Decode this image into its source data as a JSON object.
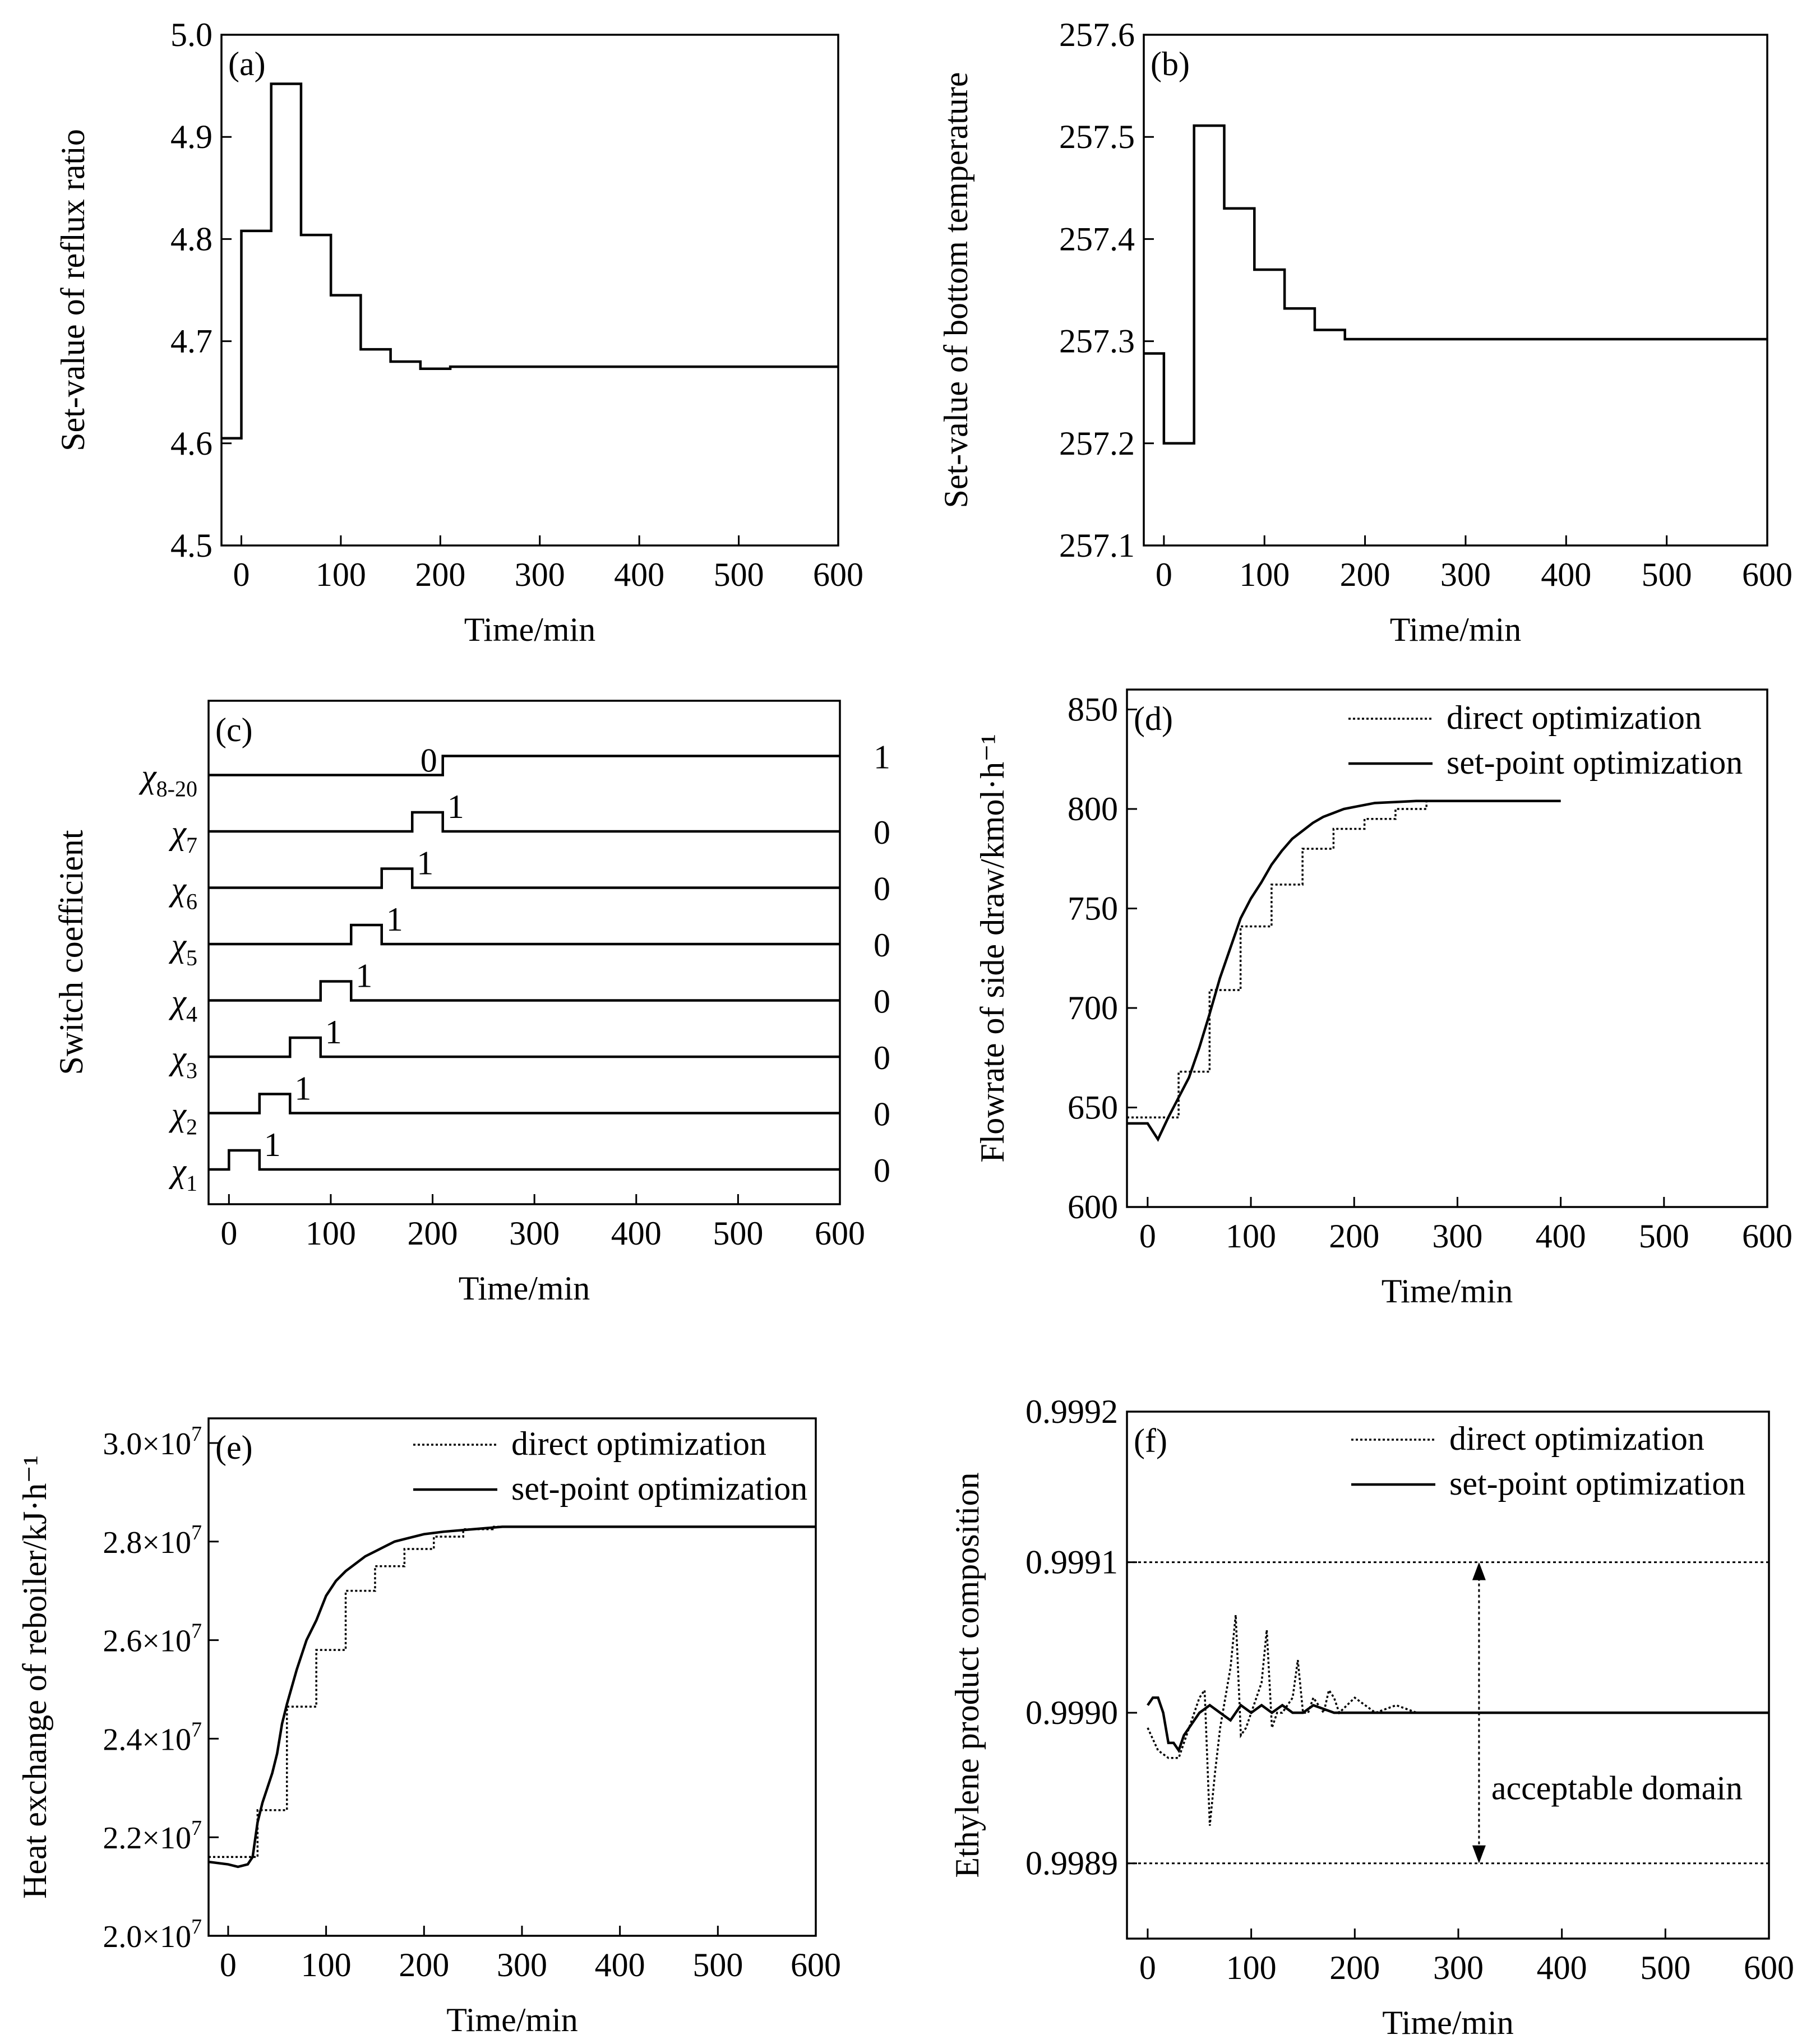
{
  "colors": {
    "ink": "#000000",
    "background": "#ffffff"
  },
  "chart_data": [
    {
      "id": "a",
      "type": "line",
      "panel_label": "(a)",
      "xlabel": "Time/min",
      "ylabel": "Set-value of reflux ratio",
      "xlim": [
        -20,
        600
      ],
      "ylim": [
        4.5,
        5.0
      ],
      "xticks": [
        0,
        100,
        200,
        300,
        400,
        500,
        600
      ],
      "xtick_labels": [
        "0",
        "100",
        "200",
        "300",
        "400",
        "500",
        "600"
      ],
      "yticks": [
        4.5,
        4.6,
        4.7,
        4.8,
        4.9,
        5.0
      ],
      "ytick_labels": [
        "4.5",
        "4.6",
        "4.7",
        "4.8",
        "4.9",
        "5.0"
      ],
      "series": [
        {
          "name": "set-value",
          "style": "step",
          "x": [
            -20,
            0,
            30,
            60,
            90,
            120,
            150,
            180,
            210,
            600
          ],
          "y": [
            4.605,
            4.808,
            4.952,
            4.804,
            4.745,
            4.692,
            4.68,
            4.673,
            4.675,
            4.675
          ]
        }
      ]
    },
    {
      "id": "b",
      "type": "line",
      "panel_label": "(b)",
      "xlabel": "Time/min",
      "ylabel": "Set-value of bottom temperature",
      "xlim": [
        -20,
        600
      ],
      "ylim": [
        257.1,
        257.6
      ],
      "xticks": [
        0,
        100,
        200,
        300,
        400,
        500,
        600
      ],
      "xtick_labels": [
        "0",
        "100",
        "200",
        "300",
        "400",
        "500",
        "600"
      ],
      "yticks": [
        257.1,
        257.2,
        257.3,
        257.4,
        257.5,
        257.6
      ],
      "ytick_labels": [
        "257.1",
        "257.2",
        "257.3",
        "257.4",
        "257.5",
        "257.6"
      ],
      "series": [
        {
          "name": "set-value",
          "style": "step",
          "x": [
            -20,
            0,
            30,
            60,
            90,
            120,
            150,
            180,
            600
          ],
          "y": [
            257.288,
            257.2,
            257.511,
            257.43,
            257.37,
            257.332,
            257.311,
            257.302,
            257.302
          ]
        }
      ]
    },
    {
      "id": "c",
      "type": "line",
      "panel_label": "(c)",
      "xlabel": "Time/min",
      "ylabel": "Switch coefficient",
      "xlim": [
        -20,
        600
      ],
      "xticks": [
        0,
        100,
        200,
        300,
        400,
        500,
        600
      ],
      "xtick_labels": [
        "0",
        "100",
        "200",
        "300",
        "400",
        "500",
        "600"
      ],
      "rows": [
        {
          "label_base": "χ",
          "label_sub": "1",
          "pulse": [
            0,
            30
          ],
          "final_value": "0",
          "pulse_value": "1"
        },
        {
          "label_base": "χ",
          "label_sub": "2",
          "pulse": [
            30,
            60
          ],
          "final_value": "0",
          "pulse_value": "1"
        },
        {
          "label_base": "χ",
          "label_sub": "3",
          "pulse": [
            60,
            90
          ],
          "final_value": "0",
          "pulse_value": "1"
        },
        {
          "label_base": "χ",
          "label_sub": "4",
          "pulse": [
            90,
            120
          ],
          "final_value": "0",
          "pulse_value": "1"
        },
        {
          "label_base": "χ",
          "label_sub": "5",
          "pulse": [
            120,
            150
          ],
          "final_value": "0",
          "pulse_value": "1"
        },
        {
          "label_base": "χ",
          "label_sub": "6",
          "pulse": [
            150,
            180
          ],
          "final_value": "0",
          "pulse_value": "1"
        },
        {
          "label_base": "χ",
          "label_sub": "7",
          "pulse": [
            180,
            210
          ],
          "final_value": "0",
          "pulse_value": "1"
        },
        {
          "label_base": "χ",
          "label_sub": "8-20",
          "step_at": 210,
          "final_value": "1",
          "pre_value": "0"
        }
      ]
    },
    {
      "id": "d",
      "type": "line",
      "panel_label": "(d)",
      "xlabel": "Time/min",
      "ylabel": "Flowrate of side draw/kmol·h⁻¹",
      "xlim": [
        -20,
        600
      ],
      "ylim": [
        600,
        860
      ],
      "xticks": [
        0,
        100,
        200,
        300,
        400,
        500,
        600
      ],
      "xtick_labels": [
        "0",
        "100",
        "200",
        "300",
        "400",
        "500",
        "600"
      ],
      "yticks": [
        600,
        650,
        700,
        750,
        800,
        850
      ],
      "ytick_labels": [
        "600",
        "650",
        "700",
        "750",
        "800",
        "850"
      ],
      "legend": [
        "direct optimization",
        "set-point optimization"
      ],
      "series": [
        {
          "name": "direct optimization",
          "style": "dotted-step",
          "x": [
            -20,
            0,
            30,
            60,
            90,
            120,
            150,
            180,
            210,
            240,
            270,
            400
          ],
          "y": [
            645,
            645,
            668,
            709,
            741,
            762,
            780,
            790,
            795,
            800,
            804,
            804
          ]
        },
        {
          "name": "set-point optimization",
          "style": "solid",
          "x": [
            -20,
            0,
            10,
            20,
            30,
            40,
            50,
            60,
            70,
            80,
            90,
            100,
            110,
            120,
            130,
            140,
            150,
            160,
            170,
            180,
            190,
            200,
            220,
            240,
            260,
            280,
            300,
            400
          ],
          "y": [
            642,
            642,
            634,
            645,
            655,
            665,
            680,
            697,
            715,
            730,
            745,
            755,
            763,
            772,
            779,
            785,
            789,
            793,
            796,
            798,
            800,
            801,
            803,
            803.5,
            804,
            804,
            804,
            804
          ]
        }
      ]
    },
    {
      "id": "e",
      "type": "line",
      "panel_label": "(e)",
      "xlabel": "Time/min",
      "ylabel": "Heat exchange of reboiler/kJ·h⁻¹",
      "xlim": [
        -20,
        600
      ],
      "ylim": [
        20000000,
        30500000
      ],
      "xticks": [
        0,
        100,
        200,
        300,
        400,
        500,
        600
      ],
      "xtick_labels": [
        "0",
        "100",
        "200",
        "300",
        "400",
        "500",
        "600"
      ],
      "yticks": [
        20000000,
        22000000,
        24000000,
        26000000,
        28000000,
        30000000
      ],
      "ytick_labels_mantissa": [
        "2.0",
        "2.2",
        "2.4",
        "2.6",
        "2.8",
        "3.0"
      ],
      "ytick_labels_times": "×10",
      "ytick_labels_exp": "7",
      "legend": [
        "direct optimization",
        "set-point optimization"
      ],
      "series": [
        {
          "name": "direct optimization",
          "style": "dotted-step",
          "x": [
            -20,
            0,
            30,
            60,
            90,
            120,
            150,
            180,
            210,
            240,
            270,
            600
          ],
          "y": [
            21600000,
            21600000,
            22550000,
            24650000,
            25800000,
            27000000,
            27500000,
            27850000,
            28100000,
            28250000,
            28300000,
            28300000
          ]
        },
        {
          "name": "set-point optimization",
          "style": "solid",
          "x": [
            -20,
            0,
            10,
            20,
            25,
            30,
            35,
            40,
            45,
            50,
            55,
            60,
            70,
            80,
            90,
            100,
            110,
            120,
            130,
            140,
            150,
            160,
            170,
            180,
            190,
            200,
            220,
            250,
            280,
            600
          ],
          "y": [
            21500000,
            21450000,
            21400000,
            21450000,
            21600000,
            22300000,
            22700000,
            23000000,
            23300000,
            23700000,
            24300000,
            24700000,
            25400000,
            26000000,
            26400000,
            26900000,
            27200000,
            27400000,
            27550000,
            27700000,
            27800000,
            27900000,
            28000000,
            28050000,
            28100000,
            28150000,
            28200000,
            28250000,
            28300000,
            28300000
          ]
        }
      ]
    },
    {
      "id": "f",
      "type": "line",
      "panel_label": "(f)",
      "xlabel": "Time/min",
      "ylabel": "Ethylene product composition",
      "xlim": [
        -20,
        600
      ],
      "ylim": [
        0.99885,
        0.9992
      ],
      "xticks": [
        0,
        100,
        200,
        300,
        400,
        500,
        600
      ],
      "xtick_labels": [
        "0",
        "100",
        "200",
        "300",
        "400",
        "500",
        "600"
      ],
      "yticks": [
        0.9989,
        0.999,
        0.9991,
        0.9992
      ],
      "ytick_labels": [
        "0.9989",
        "0.9990",
        "0.9991",
        "0.9992"
      ],
      "legend": [
        "direct optimization",
        "set-point optimization"
      ],
      "annotation": "acceptable domain",
      "bounds": [
        0.9989,
        0.9991
      ],
      "series": [
        {
          "name": "direct optimization",
          "style": "dotted",
          "x": [
            0,
            10,
            20,
            30,
            40,
            50,
            55,
            60,
            65,
            70,
            80,
            85,
            90,
            95,
            100,
            110,
            115,
            120,
            125,
            130,
            140,
            145,
            150,
            155,
            160,
            170,
            175,
            180,
            185,
            200,
            220,
            240,
            260,
            280,
            300,
            350,
            600
          ],
          "y": [
            0.99899,
            0.998975,
            0.99897,
            0.99897,
            0.99899,
            0.99901,
            0.999015,
            0.998925,
            0.99896,
            0.99899,
            0.99903,
            0.999065,
            0.998985,
            0.99899,
            0.999,
            0.99902,
            0.999055,
            0.99899,
            0.999,
            0.999,
            0.99901,
            0.999035,
            0.999,
            0.999,
            0.99901,
            0.999,
            0.999015,
            0.99901,
            0.999,
            0.99901,
            0.999,
            0.999005,
            0.999,
            0.999,
            0.999,
            0.999,
            0.999
          ]
        },
        {
          "name": "set-point optimization",
          "style": "solid",
          "x": [
            0,
            5,
            10,
            15,
            20,
            25,
            30,
            35,
            40,
            50,
            60,
            70,
            80,
            90,
            100,
            110,
            120,
            130,
            140,
            150,
            160,
            180,
            200,
            250,
            300,
            600
          ],
          "y": [
            0.999005,
            0.99901,
            0.99901,
            0.999,
            0.99898,
            0.99898,
            0.998975,
            0.998985,
            0.99899,
            0.999,
            0.999005,
            0.999,
            0.998995,
            0.999005,
            0.999,
            0.999005,
            0.999,
            0.999005,
            0.999,
            0.999,
            0.999005,
            0.999,
            0.999,
            0.999,
            0.999,
            0.999
          ]
        }
      ]
    }
  ]
}
